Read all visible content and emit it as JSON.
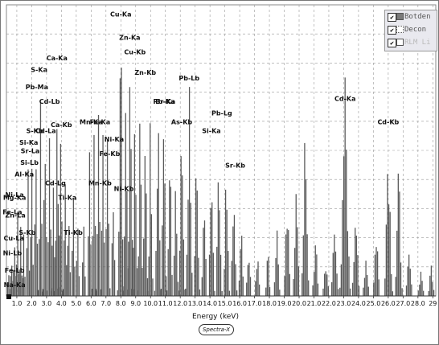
{
  "colors": {
    "spectrum": "#5a5a5a",
    "grid": "#9a9a9a",
    "legend_bg": "#e9e9ef"
  },
  "legend": [
    {
      "label": "Botden",
      "checked": true,
      "swatch": "filled-gray"
    },
    {
      "label": "Decon",
      "checked": true,
      "swatch": "dotted"
    },
    {
      "label": "RLM Li",
      "checked": true,
      "swatch": "white"
    }
  ],
  "brand": "Spectra-X",
  "chart_data": {
    "type": "area",
    "xlabel": "Energy (keV)",
    "xlim": [
      0.3,
      29.2
    ],
    "x_ticks": [
      1.0,
      2.0,
      3.0,
      4.0,
      5.0,
      6.0,
      7.0,
      8.0,
      9.0,
      10.0,
      11.0,
      12.0,
      13.0,
      14.0,
      15.0,
      16.0,
      17.0,
      18.0,
      19.0,
      20.0,
      21.0,
      22.0,
      23.0,
      24.0,
      25.0,
      26.0,
      27.0,
      28.0,
      29.0
    ],
    "x_tick_labels": [
      "1.0",
      "2.0",
      "3.0",
      "4.0",
      "5.0",
      "6.0",
      "7.0",
      "8.0",
      "9.0",
      "10.0",
      "11.0",
      "12.0",
      "13.0",
      "14.0",
      "15.0",
      "16.0",
      "17.0",
      "18.0",
      "19.0",
      "20.0",
      "21.0",
      "22.0",
      "23.0",
      "24.0",
      "25.0",
      "26.0",
      "27.0",
      "28.0",
      "29"
    ],
    "ylim": [
      0,
      100
    ],
    "grid": true,
    "legend_position": "top-right",
    "peaks": [
      {
        "x": 0.45,
        "y": 12,
        "w": 0.06
      },
      {
        "x": 0.65,
        "y": 18,
        "w": 0.05
      },
      {
        "x": 0.85,
        "y": 25,
        "w": 0.06
      },
      {
        "x": 1.05,
        "y": 38,
        "w": 0.06
      },
      {
        "x": 1.25,
        "y": 30,
        "w": 0.05
      },
      {
        "x": 1.45,
        "y": 22,
        "w": 0.06
      },
      {
        "x": 1.75,
        "y": 45,
        "w": 0.07
      },
      {
        "x": 2.0,
        "y": 52,
        "w": 0.07
      },
      {
        "x": 2.3,
        "y": 58,
        "w": 0.08
      },
      {
        "x": 2.6,
        "y": 74,
        "w": 0.08
      },
      {
        "x": 2.9,
        "y": 70,
        "w": 0.07
      },
      {
        "x": 3.2,
        "y": 66,
        "w": 0.08
      },
      {
        "x": 3.45,
        "y": 58,
        "w": 0.07
      },
      {
        "x": 3.7,
        "y": 78,
        "w": 0.08
      },
      {
        "x": 3.95,
        "y": 70,
        "w": 0.08
      },
      {
        "x": 4.25,
        "y": 52,
        "w": 0.07
      },
      {
        "x": 4.5,
        "y": 40,
        "w": 0.07
      },
      {
        "x": 4.8,
        "y": 34,
        "w": 0.07
      },
      {
        "x": 5.1,
        "y": 28,
        "w": 0.07
      },
      {
        "x": 5.5,
        "y": 34,
        "w": 0.07
      },
      {
        "x": 5.9,
        "y": 56,
        "w": 0.08
      },
      {
        "x": 6.2,
        "y": 68,
        "w": 0.08
      },
      {
        "x": 6.5,
        "y": 66,
        "w": 0.08
      },
      {
        "x": 6.8,
        "y": 58,
        "w": 0.08
      },
      {
        "x": 7.1,
        "y": 62,
        "w": 0.08
      },
      {
        "x": 7.5,
        "y": 46,
        "w": 0.08
      },
      {
        "x": 8.0,
        "y": 94,
        "w": 0.1
      },
      {
        "x": 8.35,
        "y": 86,
        "w": 0.09
      },
      {
        "x": 8.65,
        "y": 92,
        "w": 0.1
      },
      {
        "x": 8.95,
        "y": 80,
        "w": 0.09
      },
      {
        "x": 9.3,
        "y": 70,
        "w": 0.09
      },
      {
        "x": 9.65,
        "y": 58,
        "w": 0.09
      },
      {
        "x": 10.0,
        "y": 66,
        "w": 0.09
      },
      {
        "x": 10.5,
        "y": 76,
        "w": 0.1
      },
      {
        "x": 10.9,
        "y": 72,
        "w": 0.09
      },
      {
        "x": 11.3,
        "y": 54,
        "w": 0.09
      },
      {
        "x": 11.7,
        "y": 40,
        "w": 0.09
      },
      {
        "x": 12.1,
        "y": 58,
        "w": 0.1
      },
      {
        "x": 12.6,
        "y": 74,
        "w": 0.11
      },
      {
        "x": 13.1,
        "y": 52,
        "w": 0.1
      },
      {
        "x": 13.6,
        "y": 38,
        "w": 0.1
      },
      {
        "x": 14.1,
        "y": 56,
        "w": 0.1
      },
      {
        "x": 14.6,
        "y": 58,
        "w": 0.1
      },
      {
        "x": 15.1,
        "y": 48,
        "w": 0.1
      },
      {
        "x": 15.6,
        "y": 44,
        "w": 0.1
      },
      {
        "x": 16.1,
        "y": 30,
        "w": 0.1
      },
      {
        "x": 16.6,
        "y": 22,
        "w": 0.1
      },
      {
        "x": 17.2,
        "y": 18,
        "w": 0.1
      },
      {
        "x": 17.9,
        "y": 16,
        "w": 0.1
      },
      {
        "x": 18.5,
        "y": 26,
        "w": 0.11
      },
      {
        "x": 19.2,
        "y": 32,
        "w": 0.12
      },
      {
        "x": 19.8,
        "y": 40,
        "w": 0.12
      },
      {
        "x": 20.4,
        "y": 56,
        "w": 0.13
      },
      {
        "x": 21.1,
        "y": 20,
        "w": 0.12
      },
      {
        "x": 21.8,
        "y": 14,
        "w": 0.12
      },
      {
        "x": 22.4,
        "y": 30,
        "w": 0.13
      },
      {
        "x": 23.1,
        "y": 80,
        "w": 0.16
      },
      {
        "x": 23.8,
        "y": 34,
        "w": 0.13
      },
      {
        "x": 24.5,
        "y": 16,
        "w": 0.12
      },
      {
        "x": 25.2,
        "y": 26,
        "w": 0.12
      },
      {
        "x": 26.0,
        "y": 60,
        "w": 0.14
      },
      {
        "x": 26.7,
        "y": 44,
        "w": 0.13
      },
      {
        "x": 27.4,
        "y": 16,
        "w": 0.12
      },
      {
        "x": 28.2,
        "y": 10,
        "w": 0.12
      },
      {
        "x": 28.9,
        "y": 12,
        "w": 0.12
      }
    ],
    "annotations": [
      {
        "text": "Cu-Ka",
        "x": 8.0,
        "y": 96
      },
      {
        "text": "Zn-Ka",
        "x": 8.6,
        "y": 88
      },
      {
        "text": "Cu-Kb",
        "x": 8.95,
        "y": 83
      },
      {
        "text": "Zn-Kb",
        "x": 9.65,
        "y": 76
      },
      {
        "text": "Ca-Ka",
        "x": 3.7,
        "y": 81
      },
      {
        "text": "S-Ka",
        "x": 2.5,
        "y": 77
      },
      {
        "text": "Pb-Ma",
        "x": 2.35,
        "y": 71
      },
      {
        "text": "Cd-Lb",
        "x": 3.2,
        "y": 66
      },
      {
        "text": "Pb-Lb",
        "x": 12.6,
        "y": 74
      },
      {
        "text": "Rb-Ka",
        "x": 10.9,
        "y": 66
      },
      {
        "text": "Br-Ka",
        "x": 11.0,
        "y": 66
      },
      {
        "text": "Cd-Ka",
        "x": 23.1,
        "y": 67
      },
      {
        "text": "Cd-Kb",
        "x": 26.0,
        "y": 59
      },
      {
        "text": "Pb-Lg",
        "x": 14.8,
        "y": 62
      },
      {
        "text": "As-Kb",
        "x": 12.1,
        "y": 59
      },
      {
        "text": "Si-Ka",
        "x": 14.1,
        "y": 56
      },
      {
        "text": "Sr-Kb",
        "x": 15.7,
        "y": 44
      },
      {
        "text": "S-Kb",
        "x": 2.2,
        "y": 56
      },
      {
        "text": "Cd-La",
        "x": 2.95,
        "y": 56
      },
      {
        "text": "Ca-Kb",
        "x": 4.0,
        "y": 58
      },
      {
        "text": "Mn-Ka",
        "x": 6.0,
        "y": 59
      },
      {
        "text": "Fe-Ka",
        "x": 6.6,
        "y": 59
      },
      {
        "text": "Ni-Ka",
        "x": 7.55,
        "y": 53
      },
      {
        "text": "Fe-Kb",
        "x": 7.25,
        "y": 48
      },
      {
        "text": "Si-Ka",
        "x": 1.8,
        "y": 52
      },
      {
        "text": "Sr-La",
        "x": 1.9,
        "y": 49
      },
      {
        "text": "Si-Lb",
        "x": 1.85,
        "y": 45
      },
      {
        "text": "Al-Ka",
        "x": 1.5,
        "y": 41
      },
      {
        "text": "Cd-Lg",
        "x": 3.6,
        "y": 38
      },
      {
        "text": "Mn-Kb",
        "x": 6.6,
        "y": 38
      },
      {
        "text": "Ni-Kb",
        "x": 8.2,
        "y": 36
      },
      {
        "text": "Ti-Ka",
        "x": 4.4,
        "y": 33
      },
      {
        "text": "Ni-La",
        "x": 0.85,
        "y": 34
      },
      {
        "text": "Mg-Ka",
        "x": 0.85,
        "y": 33
      },
      {
        "text": "Fe-La",
        "x": 0.7,
        "y": 28
      },
      {
        "text": "Zn-La",
        "x": 0.9,
        "y": 27
      },
      {
        "text": "S-Kb",
        "x": 1.7,
        "y": 21
      },
      {
        "text": "Cu-La",
        "x": 0.8,
        "y": 19
      },
      {
        "text": "Ti-Kb",
        "x": 4.8,
        "y": 21
      },
      {
        "text": "Ni-Lb",
        "x": 0.7,
        "y": 14
      },
      {
        "text": "Fe-Lb",
        "x": 0.85,
        "y": 8
      },
      {
        "text": "Na-Ka",
        "x": 0.85,
        "y": 3
      }
    ]
  }
}
